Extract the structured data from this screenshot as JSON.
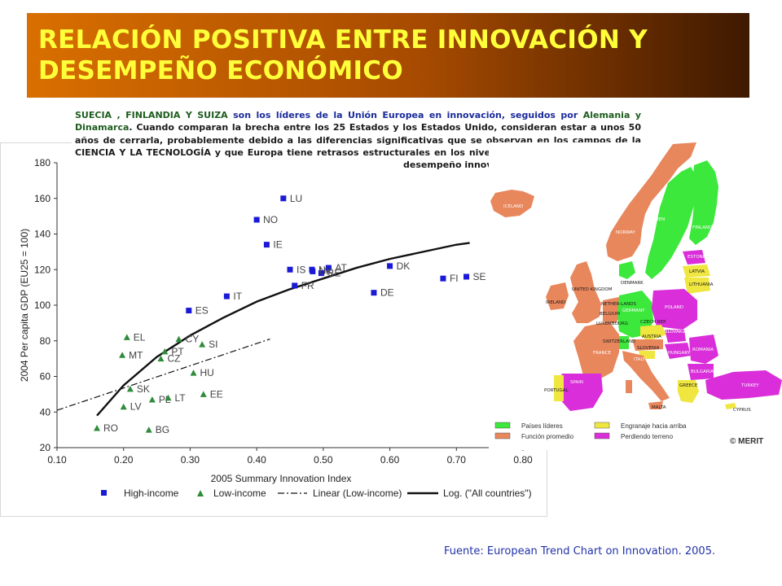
{
  "title": {
    "line1": "RELACIÓN POSITIVA ENTRE INNOVACIÓN Y",
    "line2": "DESEMPEÑO ECONÓMICO"
  },
  "intro": {
    "p1": "SUECIA , FINLANDIA Y SUIZA",
    "p2": " son los líderes de la Unión Europea en innovación, seguidos por ",
    "p3": "Alemania y Dinamarca",
    "p4": ". Cuando comparan la brecha entre los 25 Estados y los Estados Unido, consideran estar a unos 50 años de cerrarla, probablemente debido a las diferencias significativas que se observan en los campos de la CIENCIA Y LA TECNOLOGÍA y que Europa tiene retrasos estructurales en los niveles superiores de la ciencia y desempeño innovativo al compararse con USA."
  },
  "chart_data": {
    "type": "scatter",
    "xlabel": "2005 Summary Innovation Index",
    "ylabel": "2004 Per capita GDP (EU25 = 100)",
    "xlim": [
      0.1,
      0.8
    ],
    "ylim": [
      20,
      180
    ],
    "xticks": [
      "0.10",
      "0.20",
      "0.30",
      "0.40",
      "0.50",
      "0.60",
      "0.70",
      "0.80"
    ],
    "yticks": [
      "20",
      "40",
      "60",
      "80",
      "100",
      "120",
      "140",
      "160",
      "180"
    ],
    "grid": false,
    "series": [
      {
        "name": "High-income",
        "marker": "square",
        "color": "#1a1ad6",
        "points": [
          {
            "label": "LU",
            "x": 0.44,
            "y": 160
          },
          {
            "label": "NO",
            "x": 0.4,
            "y": 148
          },
          {
            "label": "IE",
            "x": 0.415,
            "y": 134
          },
          {
            "label": "IS",
            "x": 0.45,
            "y": 120
          },
          {
            "label": "NL",
            "x": 0.483,
            "y": 120
          },
          {
            "label": "AT",
            "x": 0.508,
            "y": 121
          },
          {
            "label": "BE",
            "x": 0.497,
            "y": 118
          },
          {
            "label": "UK",
            "x": 0.484,
            "y": 119
          },
          {
            "label": "FR",
            "x": 0.457,
            "y": 111
          },
          {
            "label": "DK",
            "x": 0.6,
            "y": 122
          },
          {
            "label": "DE",
            "x": 0.576,
            "y": 107
          },
          {
            "label": "FI",
            "x": 0.68,
            "y": 115
          },
          {
            "label": "SE",
            "x": 0.715,
            "y": 116
          },
          {
            "label": "IT",
            "x": 0.355,
            "y": 105
          },
          {
            "label": "ES",
            "x": 0.298,
            "y": 97
          }
        ]
      },
      {
        "name": "Low-income",
        "marker": "triangle",
        "color": "#2e8b3a",
        "points": [
          {
            "label": "EL",
            "x": 0.205,
            "y": 82
          },
          {
            "label": "CY",
            "x": 0.283,
            "y": 81
          },
          {
            "label": "MT",
            "x": 0.198,
            "y": 72
          },
          {
            "label": "SI",
            "x": 0.318,
            "y": 78
          },
          {
            "label": "PT",
            "x": 0.262,
            "y": 74
          },
          {
            "label": "CZ",
            "x": 0.256,
            "y": 70
          },
          {
            "label": "HU",
            "x": 0.305,
            "y": 62
          },
          {
            "label": "SK",
            "x": 0.21,
            "y": 53
          },
          {
            "label": "EE",
            "x": 0.32,
            "y": 50
          },
          {
            "label": "PL",
            "x": 0.243,
            "y": 47
          },
          {
            "label": "LT",
            "x": 0.267,
            "y": 48
          },
          {
            "label": "LV",
            "x": 0.2,
            "y": 43
          },
          {
            "label": "RO",
            "x": 0.16,
            "y": 31
          },
          {
            "label": "BG",
            "x": 0.238,
            "y": 30
          }
        ]
      }
    ],
    "lines": [
      {
        "name": "Linear (Low-income)",
        "style": "dash-dot",
        "x": [
          0.1,
          0.42
        ],
        "y": [
          41,
          81
        ]
      },
      {
        "name": "Log. (\"All countries\")",
        "style": "solid",
        "x": [
          0.16,
          0.2,
          0.25,
          0.3,
          0.35,
          0.4,
          0.45,
          0.5,
          0.55,
          0.6,
          0.65,
          0.7,
          0.72
        ],
        "y": [
          38,
          55,
          71,
          83,
          93,
          102,
          109,
          115,
          121,
          126,
          130,
          134,
          135
        ]
      }
    ],
    "legend": [
      "High-income",
      "Low-income",
      "Linear (Low-income)",
      "Log. (\"All countries\")"
    ],
    "legend_position": "bottom"
  },
  "map": {
    "labels": {
      "iceland": "ICELAND",
      "norway": "NORWAY",
      "sweden": "SWEDEN",
      "finland": "FINLAND",
      "estonia": "ESTONIA",
      "latvia": "LATVIA",
      "lithuania": "LITHUANIA",
      "denmark": "DENMARK",
      "uk": "UNITED KINGDOM",
      "ireland": "IRELAND",
      "netherlands": "NETHER-LANDS",
      "belgium": "BELGIUM",
      "luxembourg": "LUXEMBOURG",
      "germany": "GERMANY",
      "poland": "POLAND",
      "czech": "CZECH REP.",
      "slovakia": "SLOVAKIA",
      "austria": "AUSTRIA",
      "hungary": "HUNGARY",
      "switzerland": "SWITZERLAND",
      "slovenia": "SLOVENIA",
      "romania": "ROMANIA",
      "france": "FRANCE",
      "italy": "ITALY",
      "bulgaria": "BULGARIA",
      "spain": "SPAIN",
      "portugal": "PORTUGAL",
      "greece": "GREECE",
      "turkey": "TURKEY",
      "malta": "MALTA",
      "cyprus": "CYPRUS"
    },
    "legend": [
      {
        "label": "Países líderes",
        "color": "#3be83b"
      },
      {
        "label": "Engranaje hacia arriba",
        "color": "#f0e640"
      },
      {
        "label": "Función promedio",
        "color": "#e8865c"
      },
      {
        "label": "Perdiendo terreno",
        "color": "#d92ed9"
      }
    ],
    "credit": "© MERIT"
  },
  "source": "Fuente: European Trend Chart on Innovation. 2005.",
  "colors": {
    "banner_text": "#ffff3a",
    "leaders": "#3be83b",
    "average": "#e8865c",
    "catching_up": "#f0e640",
    "losing": "#d92ed9"
  }
}
